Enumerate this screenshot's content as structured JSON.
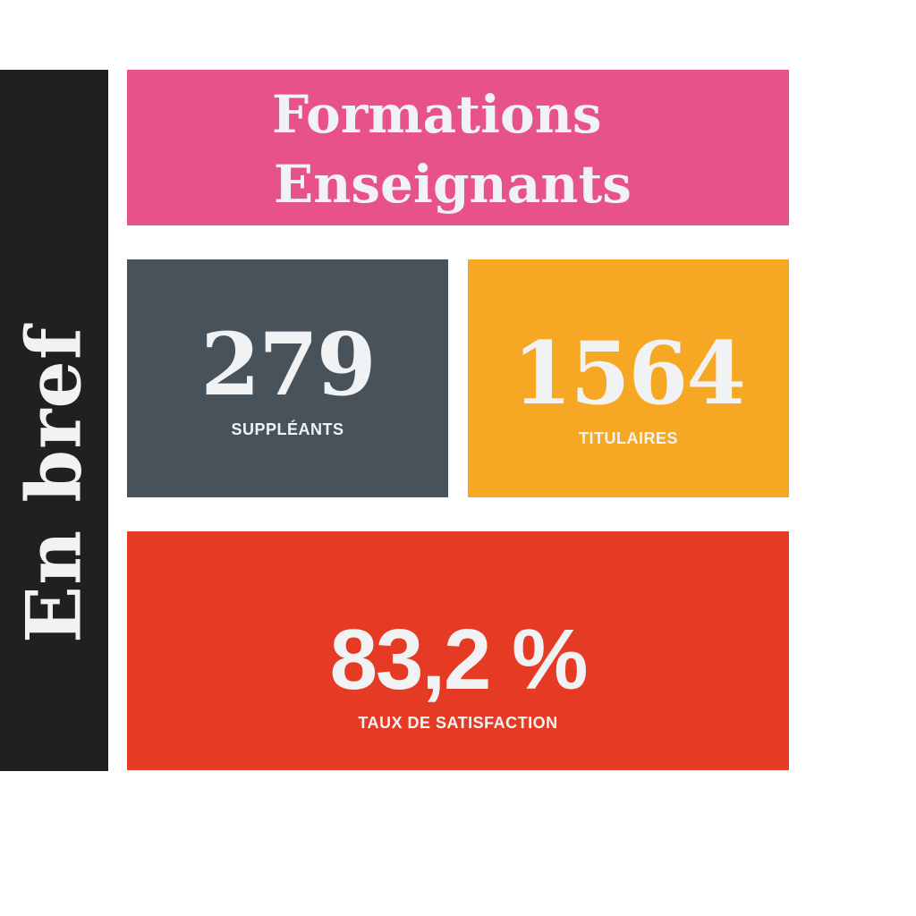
{
  "side_label": "En bref",
  "header": {
    "title_lines": [
      "Formations",
      "Enseignants"
    ]
  },
  "stats": [
    {
      "value": "279",
      "label": "SUPPLÉANTS"
    },
    {
      "value": "1564",
      "label": "TITULAIRES"
    },
    {
      "value": "83,2 %",
      "label": "TAUX DE SATISFACTION"
    }
  ]
}
